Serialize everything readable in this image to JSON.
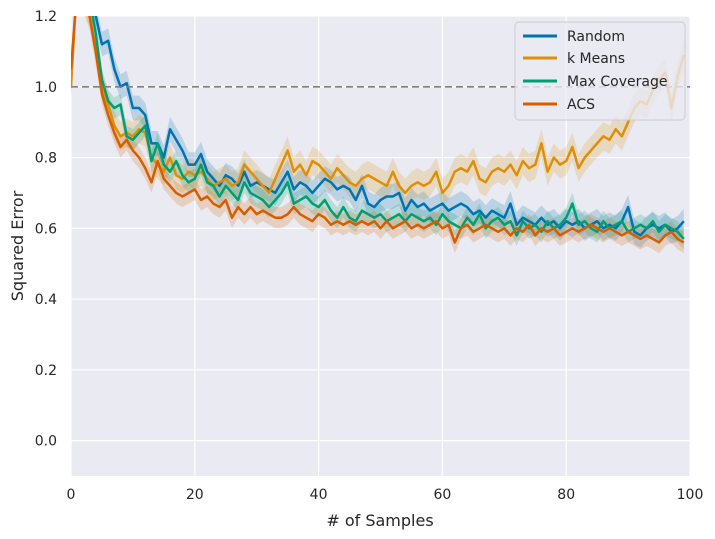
{
  "chart_data": {
    "type": "line",
    "xlabel": "# of Samples",
    "ylabel": "Squared Error",
    "xlim": [
      0,
      100
    ],
    "ylim": [
      -0.1,
      1.2
    ],
    "xticks": [
      "0",
      "20",
      "40",
      "60",
      "80",
      "100"
    ],
    "yticks": [
      "0.0",
      "0.2",
      "0.4",
      "0.6",
      "0.8",
      "1.0",
      "1.2"
    ],
    "reference_line": {
      "y": 1.0,
      "style": "dashed",
      "color": "#808080"
    },
    "grid": true,
    "legend_position": "top-right",
    "background": "#eaeaf2",
    "series": [
      {
        "name": "Random",
        "color": "#0173b2",
        "band": 0.035,
        "x": [
          0,
          1,
          2,
          3,
          4,
          5,
          6,
          7,
          8,
          9,
          10,
          11,
          12,
          13,
          14,
          15,
          16,
          17,
          18,
          19,
          20,
          21,
          22,
          23,
          24,
          25,
          26,
          27,
          28,
          29,
          30,
          31,
          32,
          33,
          34,
          35,
          36,
          37,
          38,
          39,
          40,
          41,
          42,
          43,
          44,
          45,
          46,
          47,
          48,
          49,
          50,
          51,
          52,
          53,
          54,
          55,
          56,
          57,
          58,
          59,
          60,
          61,
          62,
          63,
          64,
          65,
          66,
          67,
          68,
          69,
          70,
          71,
          72,
          73,
          74,
          75,
          76,
          77,
          78,
          79,
          80,
          81,
          82,
          83,
          84,
          85,
          86,
          87,
          88,
          89,
          90,
          91,
          92,
          93,
          94,
          95,
          96,
          97,
          98,
          99
        ],
        "y": [
          1.35,
          1.3,
          1.28,
          1.25,
          1.2,
          1.12,
          1.13,
          1.05,
          1.0,
          1.01,
          0.94,
          0.94,
          0.92,
          0.84,
          0.84,
          0.8,
          0.88,
          0.85,
          0.82,
          0.78,
          0.78,
          0.81,
          0.76,
          0.74,
          0.72,
          0.75,
          0.74,
          0.72,
          0.76,
          0.72,
          0.73,
          0.72,
          0.71,
          0.7,
          0.73,
          0.76,
          0.71,
          0.73,
          0.72,
          0.7,
          0.72,
          0.74,
          0.73,
          0.71,
          0.72,
          0.71,
          0.68,
          0.72,
          0.67,
          0.66,
          0.68,
          0.69,
          0.69,
          0.7,
          0.65,
          0.68,
          0.66,
          0.67,
          0.65,
          0.66,
          0.67,
          0.65,
          0.66,
          0.67,
          0.66,
          0.64,
          0.65,
          0.63,
          0.65,
          0.64,
          0.63,
          0.67,
          0.61,
          0.63,
          0.62,
          0.61,
          0.63,
          0.61,
          0.62,
          0.6,
          0.62,
          0.61,
          0.62,
          0.6,
          0.61,
          0.62,
          0.6,
          0.61,
          0.6,
          0.62,
          0.66,
          0.59,
          0.58,
          0.6,
          0.61,
          0.6,
          0.61,
          0.59,
          0.6,
          0.62
        ]
      },
      {
        "name": "k Means",
        "color": "#de8f05",
        "band": 0.04,
        "x": [
          0,
          1,
          2,
          3,
          4,
          5,
          6,
          7,
          8,
          9,
          10,
          11,
          12,
          13,
          14,
          15,
          16,
          17,
          18,
          19,
          20,
          21,
          22,
          23,
          24,
          25,
          26,
          27,
          28,
          29,
          30,
          31,
          32,
          33,
          34,
          35,
          36,
          37,
          38,
          39,
          40,
          41,
          42,
          43,
          44,
          45,
          46,
          47,
          48,
          49,
          50,
          51,
          52,
          53,
          54,
          55,
          56,
          57,
          58,
          59,
          60,
          61,
          62,
          63,
          64,
          65,
          66,
          67,
          68,
          69,
          70,
          71,
          72,
          73,
          74,
          75,
          76,
          77,
          78,
          79,
          80,
          81,
          82,
          83,
          84,
          85,
          86,
          87,
          88,
          89,
          90,
          91,
          92,
          93,
          94,
          95,
          96,
          97,
          98,
          99
        ],
        "y": [
          1.0,
          1.3,
          1.25,
          1.2,
          1.1,
          1.0,
          0.95,
          0.89,
          0.86,
          0.87,
          0.86,
          0.88,
          0.87,
          0.8,
          0.78,
          0.76,
          0.8,
          0.75,
          0.74,
          0.76,
          0.75,
          0.76,
          0.74,
          0.72,
          0.73,
          0.74,
          0.72,
          0.73,
          0.78,
          0.76,
          0.74,
          0.72,
          0.7,
          0.74,
          0.78,
          0.82,
          0.76,
          0.78,
          0.75,
          0.79,
          0.78,
          0.76,
          0.74,
          0.77,
          0.75,
          0.73,
          0.72,
          0.74,
          0.75,
          0.74,
          0.73,
          0.72,
          0.76,
          0.72,
          0.7,
          0.72,
          0.73,
          0.72,
          0.73,
          0.76,
          0.7,
          0.72,
          0.76,
          0.77,
          0.76,
          0.79,
          0.74,
          0.73,
          0.76,
          0.77,
          0.76,
          0.78,
          0.75,
          0.79,
          0.77,
          0.78,
          0.84,
          0.76,
          0.8,
          0.78,
          0.79,
          0.83,
          0.77,
          0.8,
          0.82,
          0.84,
          0.86,
          0.85,
          0.88,
          0.86,
          0.9,
          0.94,
          0.96,
          0.95,
          0.99,
          1.02,
          1.04,
          0.94,
          1.03,
          1.09
        ]
      },
      {
        "name": "Max Coverage",
        "color": "#029e73",
        "band": 0.03,
        "x": [
          0,
          1,
          2,
          3,
          4,
          5,
          6,
          7,
          8,
          9,
          10,
          11,
          12,
          13,
          14,
          15,
          16,
          17,
          18,
          19,
          20,
          21,
          22,
          23,
          24,
          25,
          26,
          27,
          28,
          29,
          30,
          31,
          32,
          33,
          34,
          35,
          36,
          37,
          38,
          39,
          40,
          41,
          42,
          43,
          44,
          45,
          46,
          47,
          48,
          49,
          50,
          51,
          52,
          53,
          54,
          55,
          56,
          57,
          58,
          59,
          60,
          61,
          62,
          63,
          64,
          65,
          66,
          67,
          68,
          69,
          70,
          71,
          72,
          73,
          74,
          75,
          76,
          77,
          78,
          79,
          80,
          81,
          82,
          83,
          84,
          85,
          86,
          87,
          88,
          89,
          90,
          91,
          92,
          93,
          94,
          95,
          96,
          97,
          98,
          99
        ],
        "y": [
          1.3,
          1.32,
          1.28,
          1.25,
          1.15,
          1.02,
          0.96,
          0.94,
          0.95,
          0.86,
          0.85,
          0.87,
          0.89,
          0.79,
          0.84,
          0.78,
          0.76,
          0.79,
          0.75,
          0.73,
          0.74,
          0.78,
          0.73,
          0.72,
          0.69,
          0.72,
          0.7,
          0.68,
          0.73,
          0.7,
          0.69,
          0.68,
          0.66,
          0.68,
          0.7,
          0.73,
          0.67,
          0.68,
          0.69,
          0.67,
          0.66,
          0.68,
          0.65,
          0.63,
          0.66,
          0.63,
          0.62,
          0.65,
          0.64,
          0.63,
          0.64,
          0.62,
          0.63,
          0.64,
          0.62,
          0.64,
          0.63,
          0.62,
          0.63,
          0.61,
          0.64,
          0.62,
          0.61,
          0.6,
          0.63,
          0.61,
          0.64,
          0.6,
          0.62,
          0.63,
          0.61,
          0.62,
          0.58,
          0.62,
          0.6,
          0.61,
          0.59,
          0.62,
          0.6,
          0.61,
          0.63,
          0.67,
          0.61,
          0.62,
          0.6,
          0.59,
          0.62,
          0.6,
          0.61,
          0.62,
          0.59,
          0.6,
          0.61,
          0.6,
          0.62,
          0.59,
          0.61,
          0.6,
          0.59,
          0.57
        ]
      },
      {
        "name": "ACS",
        "color": "#d55e00",
        "band": 0.03,
        "x": [
          0,
          1,
          2,
          3,
          4,
          5,
          6,
          7,
          8,
          9,
          10,
          11,
          12,
          13,
          14,
          15,
          16,
          17,
          18,
          19,
          20,
          21,
          22,
          23,
          24,
          25,
          26,
          27,
          28,
          29,
          30,
          31,
          32,
          33,
          34,
          35,
          36,
          37,
          38,
          39,
          40,
          41,
          42,
          43,
          44,
          45,
          46,
          47,
          48,
          49,
          50,
          51,
          52,
          53,
          54,
          55,
          56,
          57,
          58,
          59,
          60,
          61,
          62,
          63,
          64,
          65,
          66,
          67,
          68,
          69,
          70,
          71,
          72,
          73,
          74,
          75,
          76,
          77,
          78,
          79,
          80,
          81,
          82,
          83,
          84,
          85,
          86,
          87,
          88,
          89,
          90,
          91,
          92,
          93,
          94,
          95,
          96,
          97,
          98,
          99
        ],
        "y": [
          1.05,
          1.28,
          1.25,
          1.2,
          1.1,
          0.98,
          0.92,
          0.87,
          0.83,
          0.85,
          0.82,
          0.8,
          0.77,
          0.73,
          0.79,
          0.74,
          0.72,
          0.7,
          0.69,
          0.7,
          0.71,
          0.68,
          0.69,
          0.67,
          0.66,
          0.68,
          0.63,
          0.66,
          0.64,
          0.66,
          0.64,
          0.65,
          0.64,
          0.63,
          0.63,
          0.64,
          0.66,
          0.64,
          0.63,
          0.62,
          0.64,
          0.63,
          0.61,
          0.62,
          0.61,
          0.62,
          0.61,
          0.62,
          0.61,
          0.62,
          0.6,
          0.62,
          0.6,
          0.61,
          0.62,
          0.6,
          0.61,
          0.6,
          0.61,
          0.62,
          0.6,
          0.61,
          0.56,
          0.6,
          0.61,
          0.59,
          0.6,
          0.61,
          0.6,
          0.59,
          0.6,
          0.58,
          0.6,
          0.59,
          0.61,
          0.58,
          0.6,
          0.59,
          0.6,
          0.58,
          0.59,
          0.6,
          0.59,
          0.6,
          0.61,
          0.6,
          0.59,
          0.6,
          0.59,
          0.58,
          0.59,
          0.58,
          0.57,
          0.58,
          0.57,
          0.56,
          0.58,
          0.59,
          0.57,
          0.56
        ]
      }
    ]
  }
}
